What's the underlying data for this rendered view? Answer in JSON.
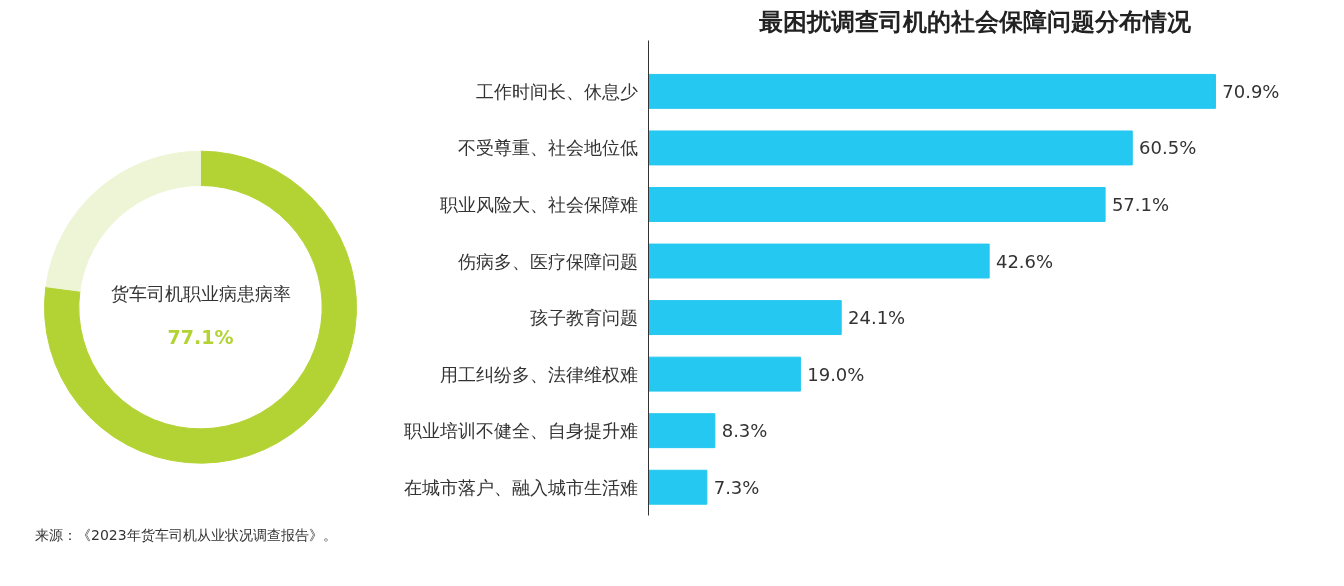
{
  "chart_data": [
    {
      "type": "donut",
      "title": "货车司机职业病患病率",
      "categories": [
        null,
        null
      ],
      "values": [
        77.1,
        22.9
      ],
      "colors": [
        "#b3d334",
        "#eef5d6"
      ],
      "value_labels": [
        "77.1%",
        null
      ]
    },
    {
      "type": "bar",
      "orientation": "horizontal",
      "title": "最困扰调查司机的社会保障问题分布情况",
      "categories": [
        "工作时间长、休息少",
        "不受尊重、社会地位低",
        "职业风险大、社会保障难",
        "伤病多、医疗保障问题",
        "孩子教育问题",
        "用工纠纷多、法律维权难",
        "职业培训不健全、自身提升难",
        "在城市落户、融入城市生活难"
      ],
      "values": [
        70.9,
        60.5,
        57.1,
        42.6,
        24.1,
        19.0,
        8.3,
        7.3
      ],
      "value_labels": [
        "70.9%",
        "60.5%",
        "57.1%",
        "42.6%",
        "24.1%",
        "19.0%",
        "8.3%",
        "7.3%"
      ],
      "color": "#24c8f0",
      "grid": false,
      "annotations": [
        "来源：《2023年货车司机从业状况调查报告》。"
      ]
    }
  ]
}
